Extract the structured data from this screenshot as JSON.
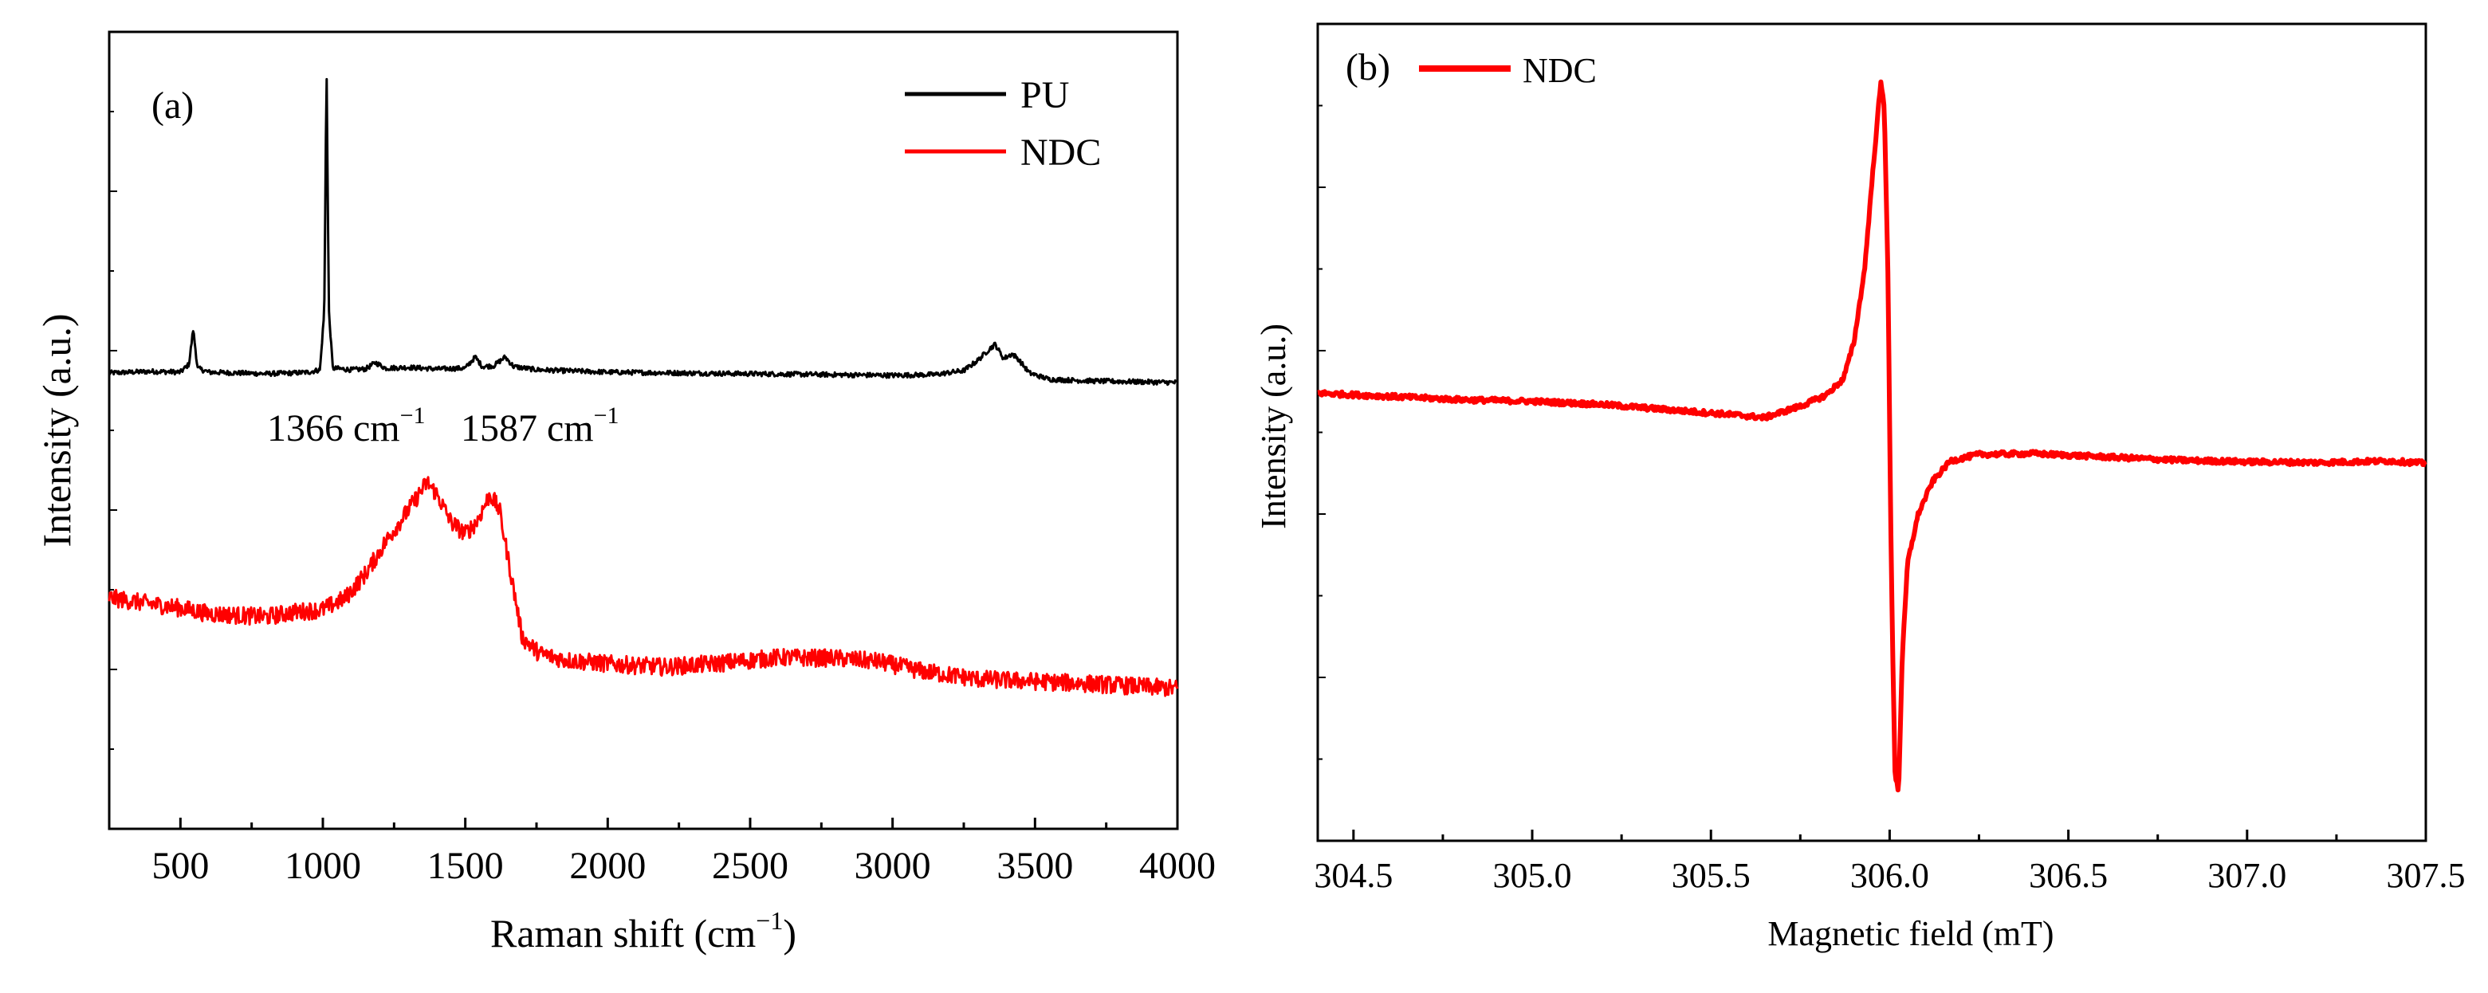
{
  "chart_data": [
    {
      "panel_label": "(a)",
      "type": "line",
      "xlabel": "Raman shift (cm",
      "xlabel_sup": "−1",
      "xlabel_close": ")",
      "ylabel": "Intensity (a.u.)",
      "xlim": [
        250,
        4000
      ],
      "ylim": [
        0,
        1
      ],
      "x_ticks": [
        500,
        1000,
        1500,
        2000,
        2500,
        3000,
        3500,
        4000
      ],
      "x_tick_labels": [
        "500",
        "1000",
        "1500",
        "2000",
        "2500",
        "3000",
        "3500",
        "4000"
      ],
      "y_ticks_labeled": false,
      "legend": {
        "position": "top-right",
        "entries": [
          "PU",
          "NDC"
        ]
      },
      "series": [
        {
          "name": "PU",
          "color": "#000000",
          "points": [
            [
              250,
              0.572
            ],
            [
              400,
              0.574
            ],
            [
              500,
              0.573
            ],
            [
              530,
              0.583
            ],
            [
              545,
              0.627
            ],
            [
              560,
              0.578
            ],
            [
              600,
              0.573
            ],
            [
              700,
              0.572
            ],
            [
              800,
              0.571
            ],
            [
              900,
              0.572
            ],
            [
              950,
              0.573
            ],
            [
              990,
              0.576
            ],
            [
              1005,
              0.65
            ],
            [
              1013,
              0.958
            ],
            [
              1021,
              0.65
            ],
            [
              1035,
              0.578
            ],
            [
              1100,
              0.576
            ],
            [
              1150,
              0.577
            ],
            [
              1185,
              0.585
            ],
            [
              1220,
              0.578
            ],
            [
              1300,
              0.579
            ],
            [
              1400,
              0.577
            ],
            [
              1500,
              0.578
            ],
            [
              1535,
              0.592
            ],
            [
              1560,
              0.58
            ],
            [
              1600,
              0.581
            ],
            [
              1640,
              0.592
            ],
            [
              1670,
              0.58
            ],
            [
              1750,
              0.576
            ],
            [
              2000,
              0.573
            ],
            [
              2500,
              0.571
            ],
            [
              3000,
              0.569
            ],
            [
              3150,
              0.57
            ],
            [
              3250,
              0.575
            ],
            [
              3300,
              0.588
            ],
            [
              3340,
              0.602
            ],
            [
              3360,
              0.608
            ],
            [
              3390,
              0.59
            ],
            [
              3420,
              0.596
            ],
            [
              3440,
              0.59
            ],
            [
              3480,
              0.572
            ],
            [
              3550,
              0.564
            ],
            [
              3700,
              0.562
            ],
            [
              4000,
              0.56
            ]
          ]
        },
        {
          "name": "NDC",
          "color": "#ff0000",
          "points": [
            [
              250,
              0.29
            ],
            [
              400,
              0.282
            ],
            [
              500,
              0.277
            ],
            [
              600,
              0.27
            ],
            [
              700,
              0.268
            ],
            [
              800,
              0.266
            ],
            [
              900,
              0.272
            ],
            [
              1000,
              0.275
            ],
            [
              1080,
              0.29
            ],
            [
              1150,
              0.32
            ],
            [
              1220,
              0.36
            ],
            [
              1300,
              0.4
            ],
            [
              1366,
              0.435
            ],
            [
              1400,
              0.42
            ],
            [
              1450,
              0.385
            ],
            [
              1500,
              0.37
            ],
            [
              1540,
              0.385
            ],
            [
              1587,
              0.42
            ],
            [
              1620,
              0.4
            ],
            [
              1660,
              0.32
            ],
            [
              1700,
              0.24
            ],
            [
              1760,
              0.22
            ],
            [
              1850,
              0.212
            ],
            [
              2000,
              0.207
            ],
            [
              2200,
              0.203
            ],
            [
              2400,
              0.208
            ],
            [
              2600,
              0.215
            ],
            [
              2800,
              0.214
            ],
            [
              2950,
              0.21
            ],
            [
              3100,
              0.198
            ],
            [
              3300,
              0.188
            ],
            [
              3500,
              0.185
            ],
            [
              3700,
              0.182
            ],
            [
              4000,
              0.176
            ]
          ]
        }
      ],
      "annotations": [
        {
          "text": "1366 cm",
          "sup": "−1"
        },
        {
          "text": "1587 cm",
          "sup": "−1"
        }
      ]
    },
    {
      "panel_label": "(b)",
      "type": "line",
      "xlabel": "Magnetic field (mT)",
      "ylabel": "Intensity (a.u.)",
      "xlim": [
        304.4,
        307.5
      ],
      "ylim": [
        0,
        1
      ],
      "x_ticks": [
        304.5,
        305.0,
        305.5,
        306.0,
        306.5,
        307.0,
        307.5
      ],
      "x_tick_labels": [
        "304.5",
        "305.0",
        "305.5",
        "306.0",
        "306.5",
        "307.0",
        "307.5"
      ],
      "y_ticks_labeled": false,
      "legend": {
        "position": "top-left",
        "entries": [
          "NDC"
        ]
      },
      "series": [
        {
          "name": "NDC",
          "color": "#ff0000",
          "points": [
            [
              304.4,
              0.548
            ],
            [
              304.6,
              0.544
            ],
            [
              304.8,
              0.54
            ],
            [
              305.0,
              0.538
            ],
            [
              305.2,
              0.534
            ],
            [
              305.4,
              0.527
            ],
            [
              305.55,
              0.522
            ],
            [
              305.65,
              0.518
            ],
            [
              305.75,
              0.532
            ],
            [
              305.82,
              0.545
            ],
            [
              305.87,
              0.565
            ],
            [
              305.9,
              0.61
            ],
            [
              305.93,
              0.7
            ],
            [
              305.955,
              0.83
            ],
            [
              305.975,
              0.928
            ],
            [
              305.985,
              0.9
            ],
            [
              305.995,
              0.7
            ],
            [
              306.005,
              0.32
            ],
            [
              306.015,
              0.082
            ],
            [
              306.025,
              0.06
            ],
            [
              306.035,
              0.22
            ],
            [
              306.05,
              0.34
            ],
            [
              306.08,
              0.4
            ],
            [
              306.12,
              0.44
            ],
            [
              306.17,
              0.465
            ],
            [
              306.25,
              0.473
            ],
            [
              306.4,
              0.474
            ],
            [
              306.6,
              0.47
            ],
            [
              306.8,
              0.466
            ],
            [
              307.0,
              0.464
            ],
            [
              307.2,
              0.463
            ],
            [
              307.4,
              0.465
            ],
            [
              307.5,
              0.462
            ]
          ]
        }
      ]
    }
  ]
}
